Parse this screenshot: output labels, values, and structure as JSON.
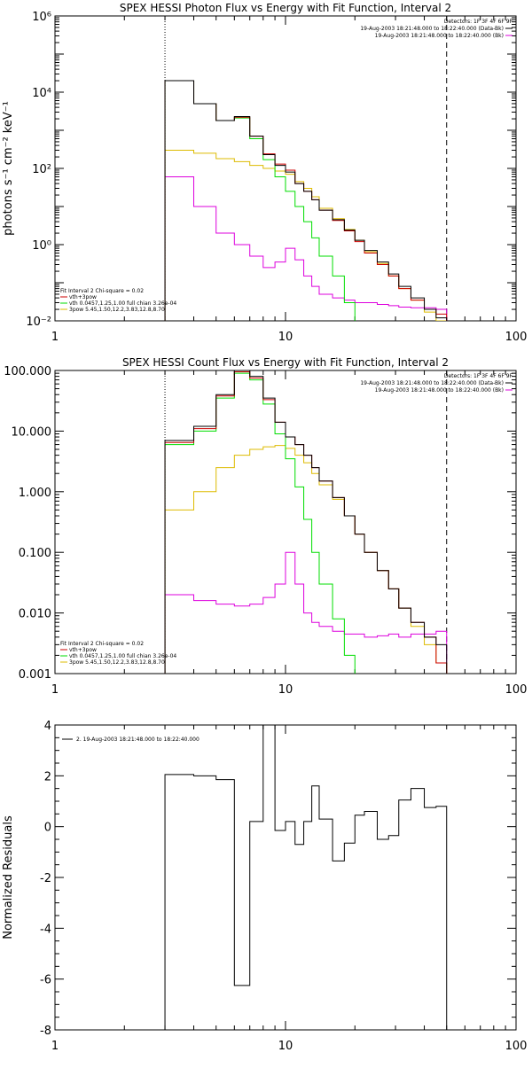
{
  "colors": {
    "black": "#000000",
    "red": "#cc0000",
    "green": "#00dd00",
    "yellow": "#ddbb00",
    "magenta": "#dd00dd"
  },
  "chart_data": [
    {
      "type": "line",
      "title": "SPEX HESSI Photon Flux vs Energy with Fit Function, Interval 2",
      "ylabel": "photons s⁻¹ cm⁻² keV⁻¹",
      "xlabel": "",
      "xscale": "log",
      "yscale": "log",
      "xlim": [
        1,
        100
      ],
      "ylim": [
        0.01,
        1000000
      ],
      "x_ticks": [
        "1",
        "10",
        "100"
      ],
      "y_ticks": [
        "10⁻²",
        "10⁰",
        "10²",
        "10⁴",
        "10⁶"
      ],
      "y_tick_values": [
        0.01,
        1,
        100,
        10000,
        1000000
      ],
      "legend_top": [
        "Detectors: 1F 3F 4F 6F 9F",
        "19-Aug-2003 18:21:48.000 to 18:22:40.000 (Data-Bk)",
        "19-Aug-2003 18:21:48.000 to 18:22:40.000 (Bk)"
      ],
      "legend_bottom": [
        "Fit Interval 2   Chi-square = 0.02",
        "vth+3pow",
        "vth 0.0457,1.25,1.00  full chian 3.26e-04",
        "3pow 5.45,1.50,12.2,3.83,12.8,8.70"
      ],
      "vlines": [
        {
          "x": 3.0,
          "style": "dotted"
        },
        {
          "x": 50.0,
          "style": "dashed"
        }
      ],
      "series": [
        {
          "name": "",
          "color": "black",
          "edges": [
            3,
            4,
            5,
            6,
            7,
            8,
            9,
            10,
            11,
            12,
            13,
            14,
            16,
            18,
            20,
            22,
            25,
            28,
            31,
            35,
            40,
            45,
            50
          ],
          "values": [
            20000,
            5000,
            1800,
            2300,
            700,
            230,
            120,
            80,
            40,
            25,
            15,
            8,
            4.5,
            2.4,
            1.3,
            0.7,
            0.35,
            0.17,
            0.08,
            0.04,
            0.02,
            0.012
          ]
        },
        {
          "name": "vth+3pow",
          "color": "red",
          "edges": [
            3,
            4,
            5,
            6,
            7,
            8,
            9,
            10,
            11,
            12,
            13,
            14,
            16,
            18,
            20,
            22,
            25,
            28,
            31,
            35,
            40,
            45,
            50
          ],
          "values": [
            20000,
            5000,
            1800,
            2200,
            700,
            240,
            130,
            90,
            40,
            25,
            15,
            8,
            4.3,
            2.3,
            1.2,
            0.6,
            0.3,
            0.15,
            0.07,
            0.035,
            0.02,
            0.015
          ]
        },
        {
          "name": "vth 0.0457,1.25,1.00  full chian 3.26e-04",
          "color": "green",
          "edges": [
            3,
            4,
            5,
            6,
            7,
            8,
            9,
            10,
            11,
            12,
            13,
            14,
            16,
            18,
            20
          ],
          "values": [
            20000,
            5000,
            1800,
            2100,
            600,
            170,
            60,
            25,
            10,
            4,
            1.5,
            0.5,
            0.15,
            0.03
          ]
        },
        {
          "name": "3pow 5.45,1.50,12.2,3.83,12.8,8.70",
          "color": "yellow",
          "edges": [
            3,
            4,
            5,
            6,
            7,
            8,
            9,
            10,
            11,
            12,
            13,
            14,
            16,
            18,
            20,
            22,
            25,
            28,
            31,
            35,
            40,
            45,
            50
          ],
          "values": [
            300,
            250,
            180,
            150,
            120,
            100,
            85,
            70,
            45,
            30,
            18,
            9,
            4.8,
            2.5,
            1.3,
            0.65,
            0.32,
            0.15,
            0.07,
            0.035,
            0.017,
            0.01
          ]
        },
        {
          "name": "19-Aug-2003 18:21:48.000 to 18:22:40.000 (Bk)",
          "color": "magenta",
          "edges": [
            3,
            4,
            5,
            6,
            7,
            8,
            9,
            10,
            11,
            12,
            13,
            14,
            16,
            18,
            20,
            22,
            25,
            28,
            31,
            35,
            40,
            45,
            50
          ],
          "values": [
            60,
            10,
            2,
            1,
            0.5,
            0.25,
            0.35,
            0.8,
            0.4,
            0.15,
            0.08,
            0.05,
            0.04,
            0.035,
            0.03,
            0.03,
            0.027,
            0.025,
            0.023,
            0.022,
            0.022,
            0.02
          ]
        }
      ]
    },
    {
      "type": "line",
      "title": "SPEX HESSI Count Flux vs Energy with Fit Function, Interval 2",
      "ylabel": "",
      "xlabel": "",
      "xscale": "log",
      "yscale": "log",
      "xlim": [
        1,
        100
      ],
      "ylim": [
        0.001,
        100
      ],
      "x_ticks": [
        "1",
        "10",
        "100"
      ],
      "y_ticks": [
        "0.001",
        "0.010",
        "0.100",
        "1.000",
        "10.000",
        "100.000"
      ],
      "y_tick_values": [
        0.001,
        0.01,
        0.1,
        1,
        10,
        100
      ],
      "legend_top": [
        "Detectors: 1F 3F 4F 6F 9F",
        "19-Aug-2003 18:21:48.000 to 18:22:40.000 (Data-Bk)",
        "19-Aug-2003 18:21:48.000 to 18:22:40.000 (Bk)"
      ],
      "legend_bottom": [
        "Fit Interval 2   Chi-square = 0.02",
        "vth+3pow",
        "vth 0.0457,1.25,1.00  full chian 3.26e-04",
        "3pow 5.45,1.50,12.2,3.83,12.8,8.70"
      ],
      "vlines": [
        {
          "x": 3.0,
          "style": "dotted"
        },
        {
          "x": 50.0,
          "style": "dashed"
        }
      ],
      "series": [
        {
          "name": "",
          "color": "black",
          "edges": [
            3,
            4,
            5,
            6,
            7,
            8,
            9,
            10,
            11,
            12,
            13,
            14,
            16,
            18,
            20,
            22,
            25,
            28,
            31,
            35,
            40,
            45,
            50
          ],
          "values": [
            7,
            12,
            40,
            100,
            80,
            35,
            14,
            8,
            6,
            4,
            2.5,
            1.5,
            0.8,
            0.4,
            0.2,
            0.1,
            0.05,
            0.025,
            0.012,
            0.007,
            0.004,
            0.003
          ]
        },
        {
          "name": "vth+3pow",
          "color": "red",
          "edges": [
            3,
            4,
            5,
            6,
            7,
            8,
            9,
            10,
            11,
            12,
            13,
            14,
            16,
            18,
            20,
            22,
            25,
            28,
            31,
            35,
            40,
            45,
            50
          ],
          "values": [
            6.5,
            11,
            38,
            95,
            75,
            33,
            14,
            8,
            6,
            4,
            2.5,
            1.5,
            0.8,
            0.4,
            0.2,
            0.1,
            0.05,
            0.025,
            0.012,
            0.007,
            0.004,
            0.0015
          ]
        },
        {
          "name": "vth 0.0457,1.25,1.00  full chian 3.26e-04",
          "color": "green",
          "edges": [
            3,
            4,
            5,
            6,
            7,
            8,
            9,
            10,
            11,
            12,
            13,
            14,
            16,
            18,
            20
          ],
          "values": [
            6,
            10,
            35,
            90,
            70,
            28,
            9,
            3.5,
            1.2,
            0.35,
            0.1,
            0.03,
            0.008,
            0.002
          ]
        },
        {
          "name": "3pow 5.45,1.50,12.2,3.83,12.8,8.70",
          "color": "yellow",
          "edges": [
            3,
            4,
            5,
            6,
            7,
            8,
            9,
            10,
            11,
            12,
            13,
            14,
            16,
            18,
            20,
            22,
            25,
            28,
            31,
            35,
            40,
            45,
            50
          ],
          "values": [
            0.5,
            1.0,
            2.5,
            4.0,
            5.0,
            5.5,
            5.8,
            5.2,
            4.0,
            3.0,
            2.0,
            1.3,
            0.75,
            0.4,
            0.2,
            0.1,
            0.05,
            0.025,
            0.012,
            0.006,
            0.003,
            0.0015
          ]
        },
        {
          "name": "19-Aug-2003 18:21:48.000 to 18:22:40.000 (Bk)",
          "color": "magenta",
          "edges": [
            3,
            4,
            5,
            6,
            7,
            8,
            9,
            10,
            11,
            12,
            13,
            14,
            16,
            18,
            20,
            22,
            25,
            28,
            31,
            35,
            40,
            45,
            50
          ],
          "values": [
            0.02,
            0.016,
            0.014,
            0.013,
            0.014,
            0.018,
            0.03,
            0.1,
            0.03,
            0.01,
            0.007,
            0.006,
            0.005,
            0.0045,
            0.0045,
            0.004,
            0.0042,
            0.0045,
            0.004,
            0.0045,
            0.0045,
            0.005
          ]
        }
      ]
    },
    {
      "type": "line",
      "title": "",
      "ylabel": "Normalized Residuals",
      "xlabel": "",
      "xscale": "log",
      "yscale": "linear",
      "xlim": [
        1,
        100
      ],
      "ylim": [
        -8,
        4
      ],
      "x_ticks": [
        "1",
        "10",
        "100"
      ],
      "y_ticks": [
        "-8",
        "-6",
        "-4",
        "-2",
        "0",
        "2",
        "4"
      ],
      "y_tick_values": [
        -8,
        -6,
        -4,
        -2,
        0,
        2,
        4
      ],
      "legend_top": [
        "2. 19-Aug-2003 18:21:48.000 to 18:22:40.000"
      ],
      "legend_bottom": [],
      "vlines": [],
      "series": [
        {
          "name": "2. 19-Aug-2003 18:21:48.000 to 18:22:40.000",
          "color": "black",
          "edges": [
            3,
            4,
            5,
            6,
            7,
            8,
            9,
            10,
            11,
            12,
            13,
            14,
            16,
            18,
            20,
            22,
            25,
            28,
            31,
            35,
            40,
            45,
            50
          ],
          "values": [
            2.05,
            2.0,
            1.85,
            -6.25,
            0.2,
            4.1,
            -0.15,
            0.2,
            -0.7,
            0.2,
            1.6,
            0.3,
            -1.35,
            -0.65,
            0.45,
            0.6,
            -0.5,
            -0.35,
            1.05,
            1.5,
            0.75,
            0.8
          ]
        }
      ]
    }
  ]
}
